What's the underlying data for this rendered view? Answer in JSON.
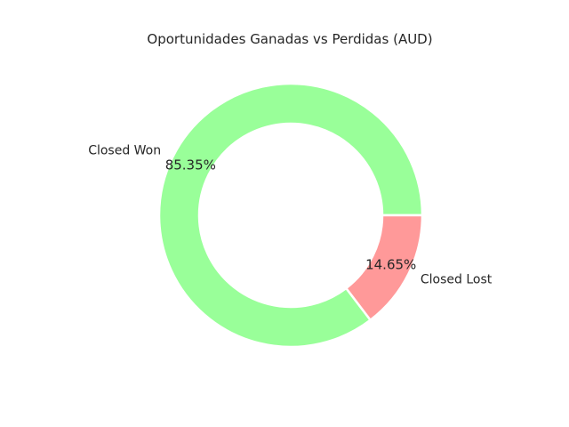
{
  "chart_data": {
    "type": "pie",
    "donut": true,
    "title": "Oportunidades Ganadas vs Perdidas (AUD)",
    "slices": [
      {
        "label": "Closed Won",
        "percent": 85.35,
        "percent_label": "85.35%",
        "color": "#99ff99"
      },
      {
        "label": "Closed Lost",
        "percent": 14.65,
        "percent_label": "14.65%",
        "color": "#ff9999"
      }
    ],
    "edge_color": "#ffffff",
    "legend": "none"
  }
}
